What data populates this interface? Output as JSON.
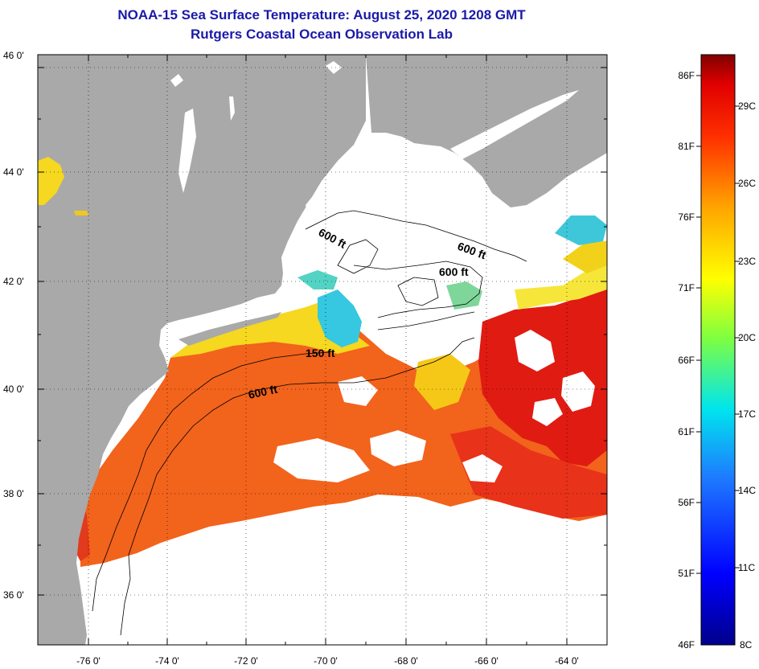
{
  "title_line1": "NOAA-15 Sea Surface Temperature:  August 25, 2020 1208 GMT",
  "title_line2": "Rutgers Coastal Ocean Observation Lab",
  "lat_labels": [
    "46 0'",
    "44 0'",
    "42 0'",
    "40 0'",
    "38 0'",
    "36 0'"
  ],
  "lon_labels": [
    "-76 0'",
    "-74 0'",
    "-72 0'",
    "-70 0'",
    "-68 0'",
    "-66 0'",
    "-64 0'"
  ],
  "depth_labels": [
    {
      "text": "600 ft"
    },
    {
      "text": "600 ft"
    },
    {
      "text": "600 ft"
    },
    {
      "text": "150 ft"
    },
    {
      "text": "600 ft"
    }
  ],
  "colorbar": {
    "fahrenheit_labels": [
      "86F",
      "81F",
      "76F",
      "71F",
      "66F",
      "61F",
      "56F",
      "51F",
      "46F"
    ],
    "celsius_labels": [
      "29C",
      "26C",
      "23C",
      "20C",
      "17C",
      "14C",
      "11C",
      "8C"
    ]
  },
  "colors": {
    "title": "#1a1aa8",
    "land": "#a9a9a9",
    "cloud": "#ffffff",
    "sst_warm": "#f2631c",
    "sst_hot": "#e01b12",
    "sst_mild": "#f5d81f",
    "sst_cool": "#35c8e0"
  }
}
